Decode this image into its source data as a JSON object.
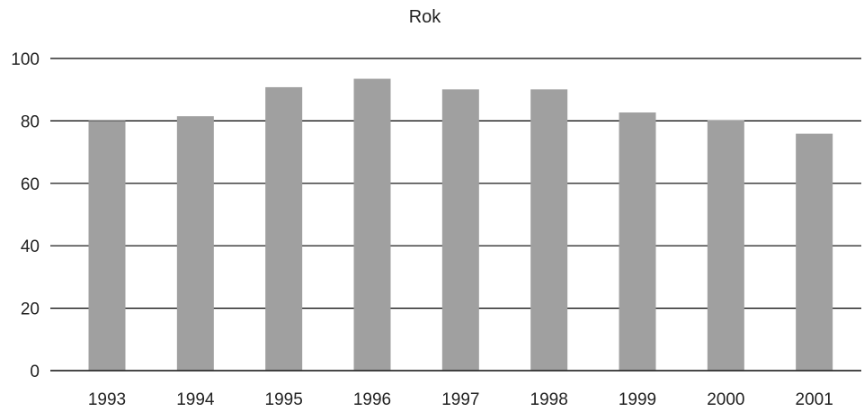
{
  "chart_data": {
    "type": "bar",
    "title": "Rok",
    "xlabel": "",
    "ylabel": "",
    "categories": [
      "1993",
      "1994",
      "1995",
      "1996",
      "1997",
      "1998",
      "1999",
      "2000",
      "2001"
    ],
    "values": [
      80,
      81.5,
      90.8,
      93.5,
      90.1,
      90.1,
      82.7,
      80.3,
      75.9
    ],
    "ylim": [
      0,
      100
    ],
    "yticks": [
      "0",
      "20",
      "40",
      "60",
      "80",
      "100"
    ],
    "grid": "horizontal",
    "legend": "none",
    "colors": {
      "bar": "#a0a0a0",
      "grid": "#000000",
      "text": "#222222"
    }
  }
}
